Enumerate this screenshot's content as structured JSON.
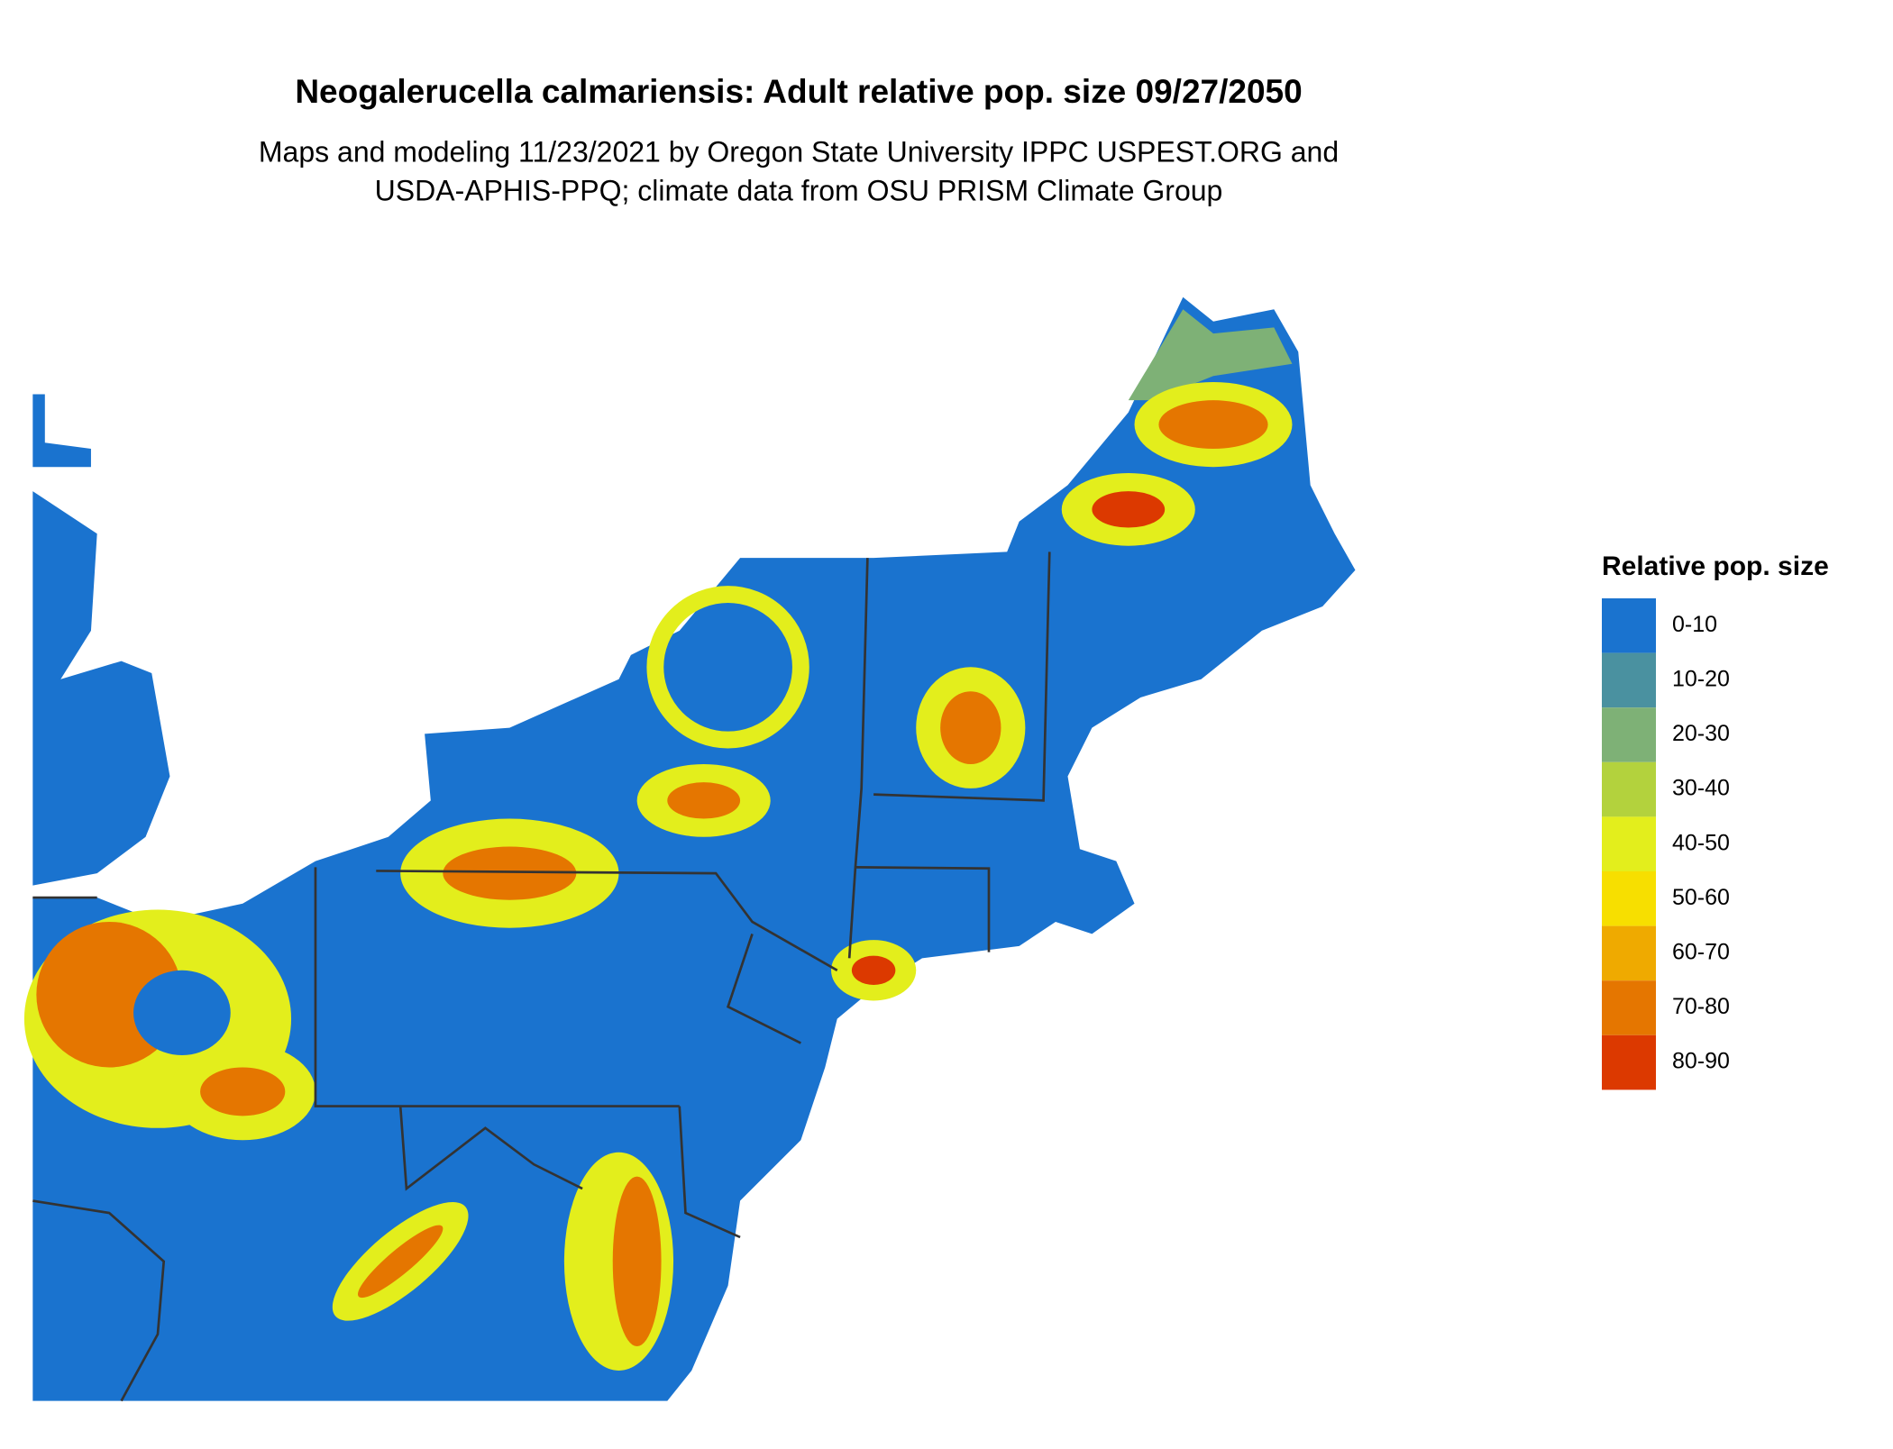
{
  "title": "Neogalerucella calmariensis: Adult relative pop. size 09/27/2050",
  "subtitle": [
    "Maps and modeling 11/23/2021 by Oregon State University IPPC USPEST.ORG and",
    "USDA-APHIS-PPQ; climate data from OSU PRISM Climate Group"
  ],
  "legend": {
    "title": "Relative pop. size",
    "items": [
      {
        "label": "0-10",
        "color": "#1a73cf"
      },
      {
        "label": "10-20",
        "color": "#4a91a0"
      },
      {
        "label": "20-30",
        "color": "#7eb176"
      },
      {
        "label": "30-40",
        "color": "#b3d23d"
      },
      {
        "label": "40-50",
        "color": "#e3ee1c"
      },
      {
        "label": "50-60",
        "color": "#f7df00"
      },
      {
        "label": "60-70",
        "color": "#efaa00"
      },
      {
        "label": "70-80",
        "color": "#e57600"
      },
      {
        "label": "80-90",
        "color": "#dc3900"
      }
    ]
  }
}
